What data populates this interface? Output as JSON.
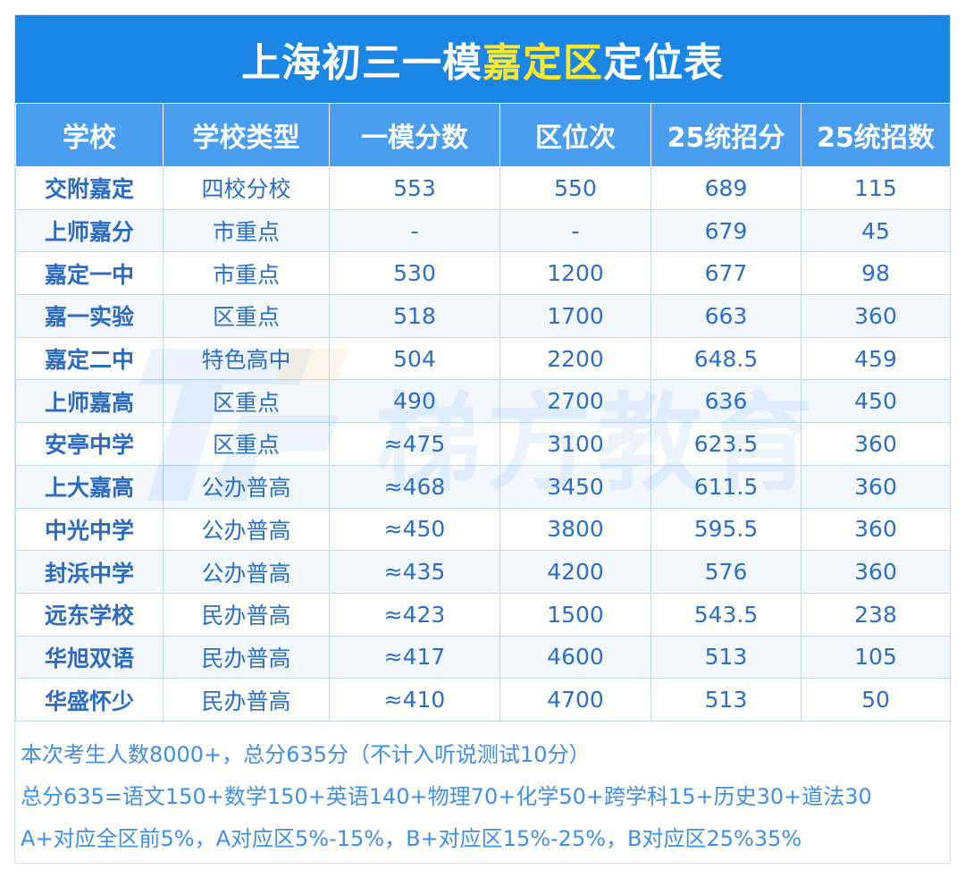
{
  "title": {
    "prefix": "上海初三一模",
    "highlight": "嘉定区",
    "suffix": "定位表"
  },
  "columns": [
    "学校",
    "学校类型",
    "一模分数",
    "区位次",
    "25统招分",
    "25统招数"
  ],
  "rows": [
    [
      "交附嘉定",
      "四校分校",
      "553",
      "550",
      "689",
      "115"
    ],
    [
      "上师嘉分",
      "市重点",
      "-",
      "-",
      "679",
      "45"
    ],
    [
      "嘉定一中",
      "市重点",
      "530",
      "1200",
      "677",
      "98"
    ],
    [
      "嘉一实验",
      "区重点",
      "518",
      "1700",
      "663",
      "360"
    ],
    [
      "嘉定二中",
      "特色高中",
      "504",
      "2200",
      "648.5",
      "459"
    ],
    [
      "上师嘉高",
      "区重点",
      "490",
      "2700",
      "636",
      "450"
    ],
    [
      "安亭中学",
      "区重点",
      "≈475",
      "3100",
      "623.5",
      "360"
    ],
    [
      "上大嘉高",
      "公办普高",
      "≈468",
      "3450",
      "611.5",
      "360"
    ],
    [
      "中光中学",
      "公办普高",
      "≈450",
      "3800",
      "595.5",
      "360"
    ],
    [
      "封浜中学",
      "公办普高",
      "≈435",
      "4200",
      "576",
      "360"
    ],
    [
      "远东学校",
      "民办普高",
      "≈423",
      "1500",
      "543.5",
      "238"
    ],
    [
      "华旭双语",
      "民办普高",
      "≈417",
      "4600",
      "513",
      "105"
    ],
    [
      "华盛怀少",
      "民办普高",
      "≈410",
      "4700",
      "513",
      "50"
    ]
  ],
  "notes": [
    "本次考生人数8000+，总分635分（不计入听说测试10分）",
    "总分635=语文150+数学150+英语140+物理70+化学50+跨学科15+历史30+道法30",
    "A+对应全区前5%，A对应区5%-15%，B+对应区15%-25%，B对应区25%35%"
  ],
  "watermark": {
    "text": "梯方教育",
    "logo_icon": "tf-logo-icon"
  },
  "colors": {
    "header_bg": "#1a86e6",
    "column_header_bg": "#4a9ef0",
    "highlight": "#ffe82a",
    "cell_text": "#2a6fc4"
  }
}
